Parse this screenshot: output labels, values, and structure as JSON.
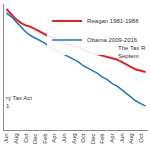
{
  "chart_data": {
    "type": "line",
    "categories": [
      "Jun",
      null,
      "Aug",
      null,
      "Oct",
      null,
      "Dec",
      null,
      "Feb",
      null,
      "Apr",
      null,
      "Jun",
      null,
      "Aug",
      null,
      "Oct",
      null,
      "Dec",
      null,
      "Feb",
      null,
      "Apr",
      null,
      "Jun",
      null,
      "Aug",
      null,
      "Oct",
      null
    ],
    "series": [
      {
        "name": "Reagan 1981-1988",
        "color": "#d62728",
        "values": [
          96,
          92,
          88,
          85,
          83,
          82,
          80,
          78,
          76,
          74,
          73,
          71,
          69,
          68,
          67,
          66,
          64,
          62,
          61,
          60,
          59,
          58,
          57,
          56,
          54,
          52,
          50,
          48,
          47,
          46
        ]
      },
      {
        "name": "Obama 2009-2016",
        "color": "#1f77b4",
        "values": [
          93,
          90,
          86,
          82,
          78,
          75,
          73,
          71,
          69,
          66,
          64,
          62,
          60,
          58,
          56,
          54,
          51,
          49,
          47,
          45,
          42,
          40,
          37,
          35,
          32,
          29,
          26,
          23,
          21,
          19
        ]
      }
    ],
    "annotations": [
      {
        "lines": [
          "The Tax R",
          "Septem"
        ]
      },
      {
        "lines": [
          "ry Tax Act",
          "1"
        ]
      }
    ],
    "ylim": [
      0,
      100
    ],
    "yticks": [],
    "tick_labels": "x",
    "grid": false,
    "legend": "top right"
  }
}
